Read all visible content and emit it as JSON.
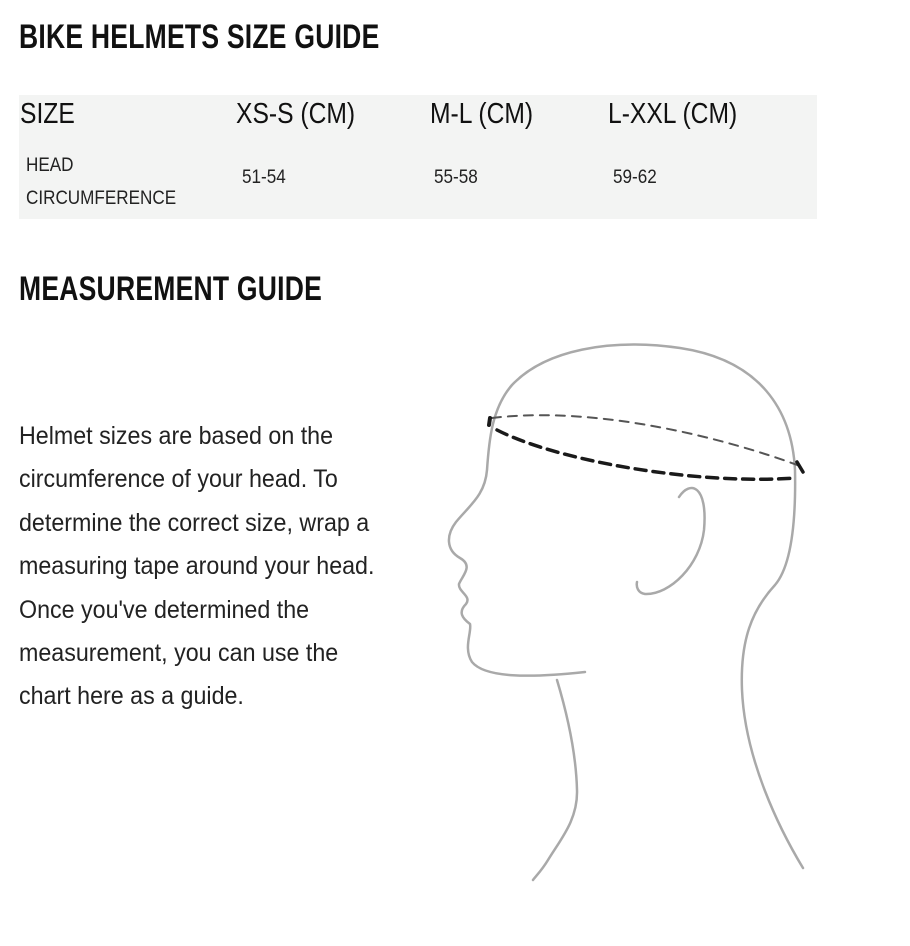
{
  "title": "BIKE HELMETS SIZE GUIDE",
  "table": {
    "headers": [
      "SIZE",
      "XS-S (CM)",
      "M-L (CM)",
      "L-XXL (CM)"
    ],
    "rows": [
      {
        "label_line1": "HEAD",
        "label_line2": "CIRCUMFERENCE",
        "values": [
          "51-54",
          "55-58",
          "59-62"
        ]
      }
    ]
  },
  "measurement": {
    "title": "MEASUREMENT GUIDE",
    "description": "Helmet sizes are based on the circumference of your head. To determine the correct size, wrap a measuring tape around your head. Once you've determined the measurement, you can use the chart here as a guide."
  },
  "illustration": {
    "icon": "head-profile-measuring-tape",
    "line_color": "#a9a9a9",
    "tape_color": "#1a1a1a"
  }
}
